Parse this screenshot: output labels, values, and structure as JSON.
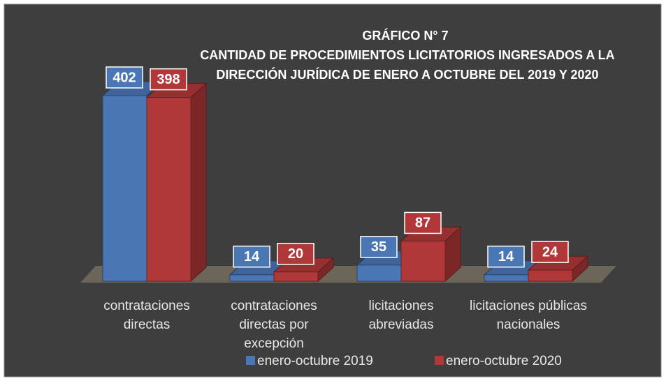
{
  "chart_data": {
    "type": "bar3d",
    "title": [
      "GRÁFICO N° 7",
      "CANTIDAD DE PROCEDIMIENTOS LICITATORIOS INGRESADOS A LA",
      "DIRECCIÓN JURÍDICA DE ENERO A OCTUBRE DEL 2019 Y 2020"
    ],
    "categories": [
      "contrataciones directas",
      "contrataciones directas por excepción",
      "licitaciones abreviadas",
      "licitaciones públicas nacionales"
    ],
    "series": [
      {
        "name": "enero-octubre 2019",
        "color": "#4a76b4",
        "values": [
          402,
          14,
          35,
          14
        ]
      },
      {
        "name": "enero-octubre 2020",
        "color": "#b03838",
        "values": [
          398,
          20,
          87,
          24
        ]
      }
    ],
    "legend": "bottom"
  }
}
